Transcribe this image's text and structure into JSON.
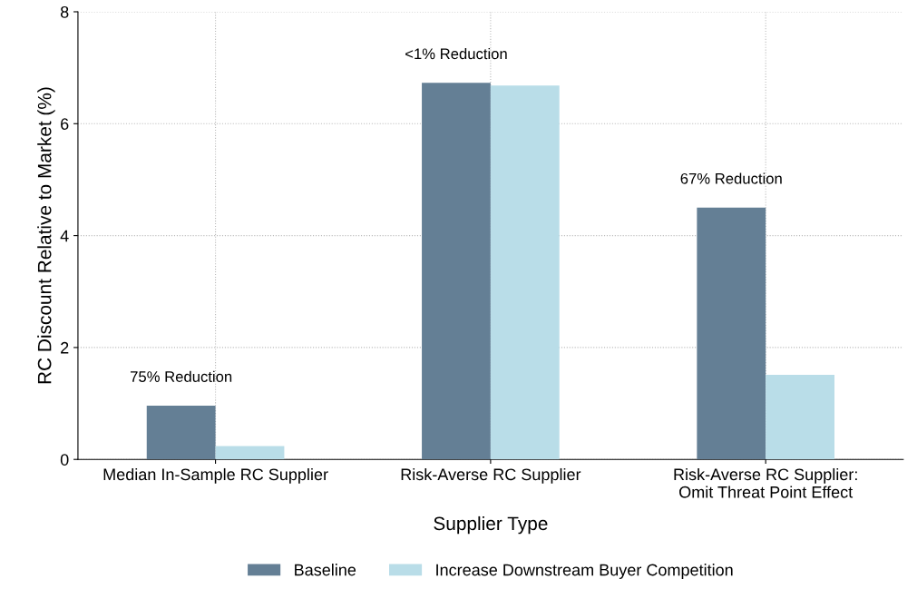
{
  "chart_data": {
    "type": "bar",
    "xlabel": "Supplier Type",
    "ylabel": "RC Discount Relative to Market (%)",
    "categories": [
      "Median In-Sample RC Supplier",
      "Risk-Averse RC Supplier",
      "Risk-Averse RC Supplier:\nOmit Threat Point Effect"
    ],
    "series": [
      {
        "name": "Baseline",
        "color": "#647f95",
        "values": [
          0.96,
          6.73,
          4.5
        ]
      },
      {
        "name": "Increase Downstream Buyer Competition",
        "color": "#b9dde8",
        "values": [
          0.24,
          6.68,
          1.51
        ]
      }
    ],
    "ylim": [
      0,
      8
    ],
    "yticks": [
      0,
      2,
      4,
      6,
      8
    ],
    "grid": true,
    "legend": "bottom",
    "annotations": [
      "75% Reduction",
      "<1% Reduction",
      "67% Reduction"
    ]
  }
}
